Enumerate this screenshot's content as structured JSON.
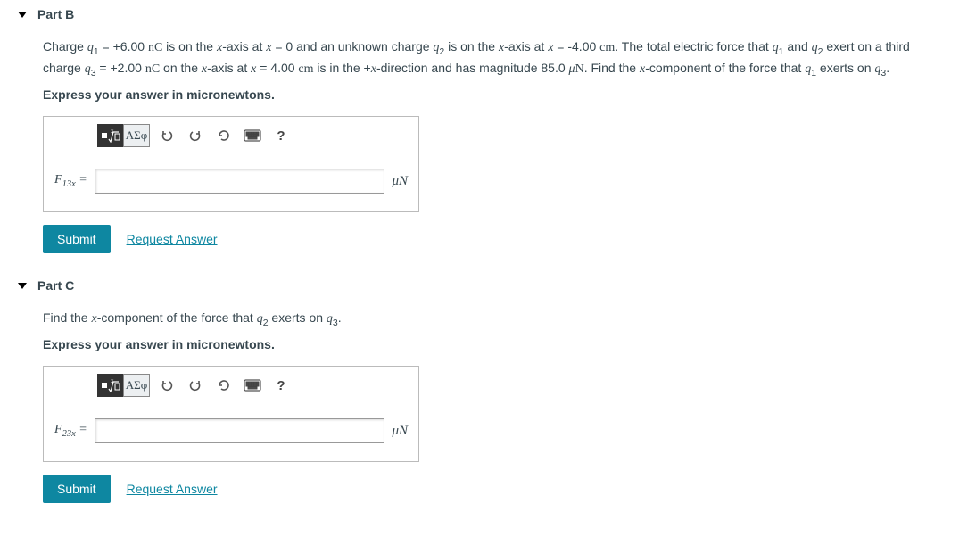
{
  "colors": {
    "accent": "#0e87a1",
    "border": "#bbbbbb",
    "text": "#37474f",
    "darkbtn": "#333333"
  },
  "parts": [
    {
      "header": "Part B",
      "problem_html": "Charge <span class='italic'>q</span><span class='sub'>1</span> = +6.00 <span class='unit'>nC</span> is on the <span class='italic'>x</span>-axis at <span class='italic'>x</span> = 0 and an unknown charge <span class='italic'>q</span><span class='sub'>2</span> is on the <span class='italic'>x</span>-axis at <span class='italic'>x</span> = -4.00 <span class='unit'>cm</span>. The total electric force that <span class='italic'>q</span><span class='sub'>1</span> and <span class='italic'>q</span><span class='sub'>2</span> exert on a third charge <span class='italic'>q</span><span class='sub'>3</span> = +2.00 <span class='unit'>nC</span> on the <span class='italic'>x</span>-axis at <span class='italic'>x</span> = 4.00 <span class='unit'>cm</span> is in the +<span class='italic'>x</span>-direction and has magnitude 85.0 <span class='italic'>μ</span><span class='unit'>N</span>. Find the <span class='italic'>x</span>-component of the force that <span class='italic'>q</span><span class='sub'>1</span> exerts on <span class='italic'>q</span><span class='sub'>3</span>.",
      "instruction": "Express your answer in micronewtons.",
      "var_label_html": "<span class='italic'>F</span><span class='sub'>13<span class='italic'>x</span></span> =",
      "unit_html": "<span class='italic'>μ</span>N",
      "input_value": "",
      "submit_label": "Submit",
      "request_label": "Request Answer",
      "toolbar": {
        "templates_label": "■√□",
        "symbols_label": "ΑΣφ",
        "help_label": "?"
      }
    },
    {
      "header": "Part C",
      "problem_html": "Find the <span class='italic'>x</span>-component of the force that <span class='italic'>q</span><span class='sub'>2</span> exerts on <span class='italic'>q</span><span class='sub'>3</span>.",
      "instruction": "Express your answer in micronewtons.",
      "var_label_html": "<span class='italic'>F</span><span class='sub'>23<span class='italic'>x</span></span> =",
      "unit_html": "<span class='italic'>μ</span>N",
      "input_value": "",
      "submit_label": "Submit",
      "request_label": "Request Answer",
      "toolbar": {
        "templates_label": "■√□",
        "symbols_label": "ΑΣφ",
        "help_label": "?"
      }
    }
  ]
}
